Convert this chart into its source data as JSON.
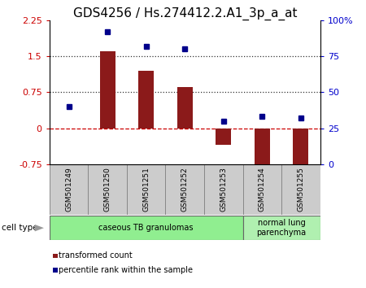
{
  "title": "GDS4256 / Hs.274412.2.A1_3p_a_at",
  "samples": [
    "GSM501249",
    "GSM501250",
    "GSM501251",
    "GSM501252",
    "GSM501253",
    "GSM501254",
    "GSM501255"
  ],
  "transformed_counts": [
    0.0,
    1.6,
    1.2,
    0.85,
    -0.35,
    -0.85,
    -0.75
  ],
  "percentile_ranks": [
    40,
    92,
    82,
    80,
    30,
    33,
    32
  ],
  "bar_color": "#8B1A1A",
  "dot_color": "#00008B",
  "ylim_left": [
    -0.75,
    2.25
  ],
  "ylim_right": [
    0,
    100
  ],
  "yticks_left": [
    -0.75,
    0,
    0.75,
    1.5,
    2.25
  ],
  "yticks_right": [
    0,
    25,
    50,
    75,
    100
  ],
  "hlines": [
    0.0,
    0.75,
    1.5
  ],
  "hline_styles": [
    "dashed",
    "dotted",
    "dotted"
  ],
  "hline_colors": [
    "#cc0000",
    "#333333",
    "#333333"
  ],
  "cell_type_groups": [
    {
      "label": "caseous TB granulomas",
      "start": 0,
      "end": 5,
      "color": "#90EE90"
    },
    {
      "label": "normal lung\nparenchyma",
      "start": 5,
      "end": 7,
      "color": "#b0f0b0"
    }
  ],
  "cell_type_label": "cell type",
  "legend_items": [
    {
      "label": "transformed count",
      "color": "#8B1A1A"
    },
    {
      "label": "percentile rank within the sample",
      "color": "#00008B"
    }
  ],
  "background_color": "#ffffff",
  "plot_bg_color": "#ffffff",
  "left_tick_color": "#cc0000",
  "right_tick_color": "#0000cc",
  "title_fontsize": 11,
  "bar_width": 0.4,
  "dot_size": 5,
  "sample_bg_color": "#cccccc",
  "sample_font_size": 6.5
}
